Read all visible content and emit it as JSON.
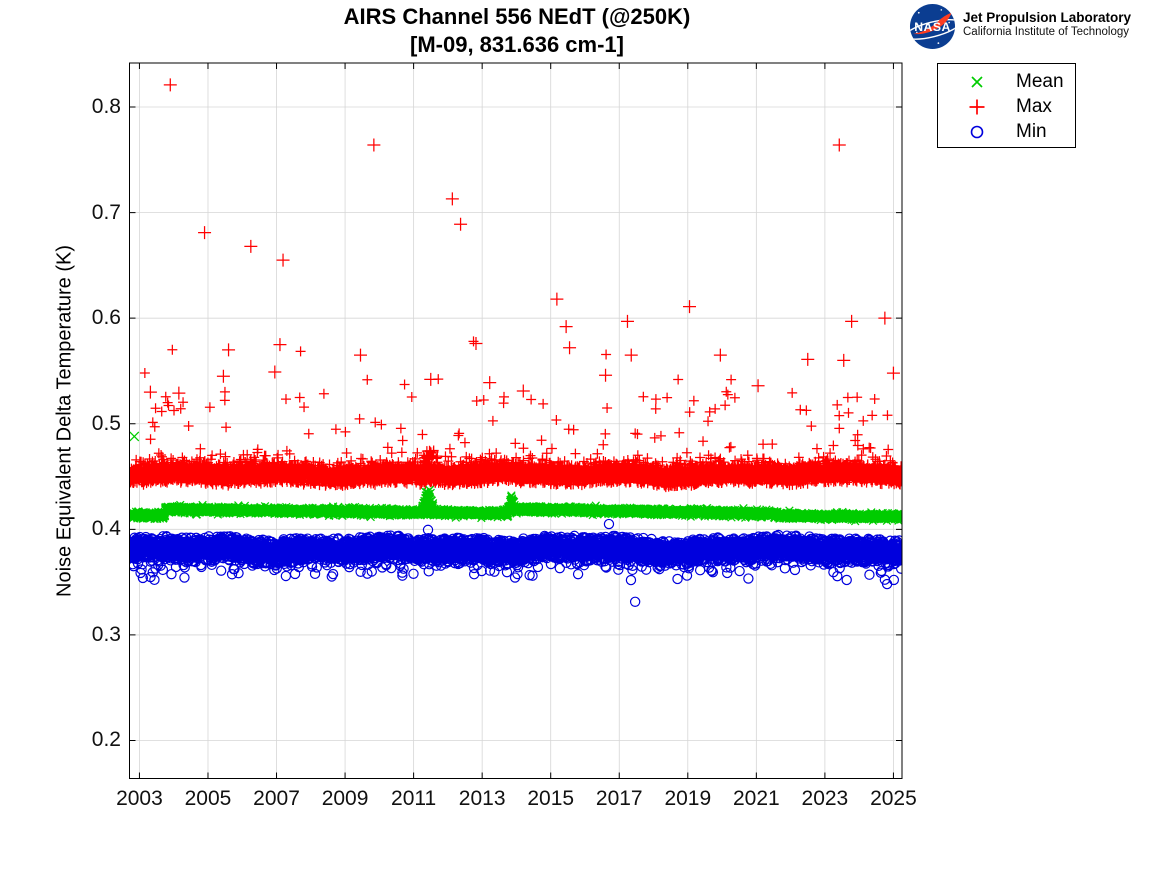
{
  "logo": {
    "org_name": "Jet Propulsion Laboratory",
    "org_sub": "California Institute of Technology",
    "meatball_text": "NASA",
    "meatball_blue": "#0b3d91",
    "swoosh_red": "#fc3d21"
  },
  "chart_data": {
    "type": "scatter",
    "title": "AIRS Channel 556 NEdT (@250K)",
    "subtitle": "[M-09, 831.636 cm-1]",
    "xlabel": "",
    "ylabel": "Noise Equivalent Delta Temperature (K)",
    "xlim": [
      2002.71,
      2025.25
    ],
    "ylim": [
      0.164,
      0.8417
    ],
    "xticks": [
      2003,
      2005,
      2007,
      2009,
      2011,
      2013,
      2015,
      2017,
      2019,
      2021,
      2023,
      2025
    ],
    "yticks": [
      0.2,
      0.3,
      0.4,
      0.5,
      0.6,
      0.7,
      0.8
    ],
    "grid": true,
    "grid_color": "#d6d6d6",
    "axis_color": "#000000",
    "legend_position": "outside-top-right",
    "x_start": 2002.73,
    "x_end": 2025.24,
    "points_per_year": 365,
    "series": [
      {
        "name": "Mean",
        "marker": "x",
        "color": "#00cc00",
        "band": {
          "sigma": 0.0013,
          "segments": [
            {
              "from": 2002.73,
              "to": 2003.75,
              "start": 0.4132,
              "end": 0.4136
            },
            {
              "from": 2003.75,
              "to": 2013.76,
              "start": 0.419,
              "end": 0.415
            },
            {
              "from": 2013.76,
              "to": 2021.62,
              "start": 0.4192,
              "end": 0.4148
            },
            {
              "from": 2021.62,
              "to": 2025.24,
              "start": 0.4128,
              "end": 0.4118
            }
          ],
          "bumps": [
            {
              "center": 2011.42,
              "halfwidth": 0.2,
              "height": 0.028
            },
            {
              "center": 2013.86,
              "halfwidth": 0.11,
              "height": 0.013
            }
          ]
        },
        "outliers": [
          [
            2002.85,
            0.488
          ]
        ]
      },
      {
        "name": "Max",
        "marker": "+",
        "color": "#ff0000",
        "band": {
          "center": 0.4523,
          "sigma": 0.0042,
          "excursion_p": 0.05,
          "excursion_scale": 0.008,
          "spike_p": 0.008,
          "spike_min": 0.028,
          "spike_range": 0.05,
          "rare_p": 0.0015,
          "rare_min": 0.07,
          "rare_range": 0.06,
          "bursts": [
            {
              "from": 2011.3,
              "to": 2011.72,
              "p": 0.3,
              "scale": 0.02
            },
            {
              "from": 2012.52,
              "to": 2012.78,
              "p": 0.22,
              "scale": 0.016
            }
          ]
        },
        "outliers": [
          [
            2003.32,
            0.53
          ],
          [
            2003.9,
            0.821
          ],
          [
            2004.15,
            0.529
          ],
          [
            2004.9,
            0.681
          ],
          [
            2005.45,
            0.545
          ],
          [
            2005.6,
            0.57
          ],
          [
            2006.25,
            0.668
          ],
          [
            2006.95,
            0.549
          ],
          [
            2007.1,
            0.575
          ],
          [
            2007.19,
            0.655
          ],
          [
            2009.45,
            0.565
          ],
          [
            2009.84,
            0.764
          ],
          [
            2011.5,
            0.542
          ],
          [
            2012.13,
            0.713
          ],
          [
            2012.37,
            0.689
          ],
          [
            2012.82,
            0.576
          ],
          [
            2013.22,
            0.539
          ],
          [
            2014.2,
            0.531
          ],
          [
            2015.18,
            0.618
          ],
          [
            2015.45,
            0.592
          ],
          [
            2015.55,
            0.572
          ],
          [
            2016.6,
            0.546
          ],
          [
            2017.24,
            0.597
          ],
          [
            2017.35,
            0.565
          ],
          [
            2019.05,
            0.611
          ],
          [
            2019.95,
            0.565
          ],
          [
            2021.05,
            0.536
          ],
          [
            2022.5,
            0.561
          ],
          [
            2023.42,
            0.764
          ],
          [
            2023.55,
            0.56
          ],
          [
            2023.78,
            0.597
          ],
          [
            2024.75,
            0.6
          ],
          [
            2025.0,
            0.548
          ]
        ]
      },
      {
        "name": "Min",
        "marker": "o",
        "color": "#0000dd",
        "band": {
          "center": 0.3808,
          "sigma": 0.0048,
          "dip_p": 0.06,
          "dip_scale": 0.005,
          "deep_p": 0.008,
          "deep_min": 0.012,
          "deep_range": 0.012
        },
        "outliers": [
          [
            2003.1,
            0.354
          ],
          [
            2011.42,
            0.3995
          ],
          [
            2016.7,
            0.405
          ],
          [
            2018.7,
            0.353
          ],
          [
            2024.3,
            0.357
          ]
        ]
      }
    ]
  }
}
